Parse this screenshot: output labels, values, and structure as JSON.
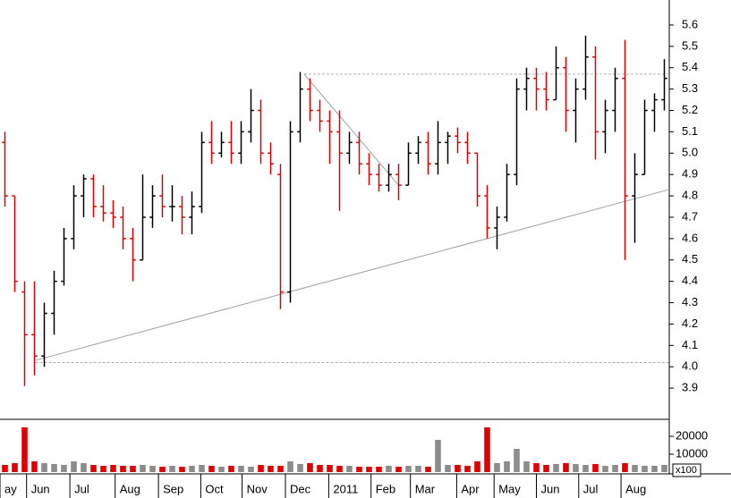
{
  "chart_data": {
    "type": "ohlc",
    "xlim": [
      0,
      68
    ],
    "xticks": [
      {
        "value": 0,
        "label": "ay"
      },
      {
        "value": 2.7,
        "label": "Jun"
      },
      {
        "value": 7.1,
        "label": "Jul"
      },
      {
        "value": 11.7,
        "label": "Aug"
      },
      {
        "value": 16.1,
        "label": "Sep"
      },
      {
        "value": 20.4,
        "label": "Oct"
      },
      {
        "value": 24.6,
        "label": "Nov"
      },
      {
        "value": 29.0,
        "label": "Dec"
      },
      {
        "value": 33.4,
        "label": "2011"
      },
      {
        "value": 37.7,
        "label": "Feb"
      },
      {
        "value": 41.7,
        "label": "Mar"
      },
      {
        "value": 46.4,
        "label": "Apr"
      },
      {
        "value": 50.2,
        "label": "May"
      },
      {
        "value": 54.5,
        "label": "Jun"
      },
      {
        "value": 58.8,
        "label": "Jul"
      },
      {
        "value": 63.1,
        "label": "Aug"
      }
    ],
    "ylim": [
      3.754,
      5.717
    ],
    "yticks": [
      {
        "value": 3.9,
        "label": "3.9"
      },
      {
        "value": 4.0,
        "label": "4.0"
      },
      {
        "value": 4.1,
        "label": "4.1"
      },
      {
        "value": 4.2,
        "label": "4.2"
      },
      {
        "value": 4.3,
        "label": "4.3"
      },
      {
        "value": 4.4,
        "label": "4.4"
      },
      {
        "value": 4.5,
        "label": "4.5"
      },
      {
        "value": 4.6,
        "label": "4.6"
      },
      {
        "value": 4.7,
        "label": "4.7"
      },
      {
        "value": 4.8,
        "label": "4.8"
      },
      {
        "value": 4.9,
        "label": "4.9"
      },
      {
        "value": 5.0,
        "label": "5.0"
      },
      {
        "value": 5.1,
        "label": "5.1"
      },
      {
        "value": 5.2,
        "label": "5.2"
      },
      {
        "value": 5.3,
        "label": "5.3"
      },
      {
        "value": 5.4,
        "label": "5.4"
      },
      {
        "value": 5.5,
        "label": "5.5"
      },
      {
        "value": 5.6,
        "label": "5.6"
      }
    ],
    "up_color": "#000000",
    "down_color": "#e00000",
    "volume_up_color": "#8c8c8c",
    "open": [
      5.05,
      4.8,
      4.35,
      4.15,
      4.05,
      4.25,
      4.4,
      4.6,
      4.8,
      4.88,
      4.75,
      4.72,
      4.7,
      4.6,
      4.5,
      4.7,
      4.8,
      4.75,
      4.75,
      4.7,
      4.75,
      5.05,
      5.0,
      5.05,
      5.0,
      5.1,
      5.2,
      5.0,
      4.9,
      4.35,
      5.1,
      5.3,
      5.2,
      5.15,
      5.1,
      5.0,
      5.05,
      4.95,
      4.9,
      4.85,
      4.9,
      4.85,
      5.0,
      5.05,
      4.95,
      5.05,
      5.08,
      5.05,
      5.0,
      4.8,
      4.65,
      4.7,
      4.9,
      5.3,
      5.35,
      5.3,
      5.25,
      5.4,
      5.2,
      5.3,
      5.45,
      5.1,
      5.2,
      5.35,
      4.8,
      4.9,
      5.2,
      5.25
    ],
    "high": [
      5.1,
      4.8,
      4.4,
      4.4,
      4.3,
      4.45,
      4.65,
      4.85,
      4.9,
      4.9,
      4.85,
      4.78,
      4.75,
      4.65,
      4.9,
      4.85,
      4.9,
      4.85,
      4.8,
      4.82,
      5.1,
      5.15,
      5.1,
      5.15,
      5.15,
      5.3,
      5.25,
      5.05,
      4.95,
      5.15,
      5.38,
      5.35,
      5.25,
      5.2,
      5.2,
      5.1,
      5.1,
      5.0,
      4.95,
      4.95,
      4.95,
      5.05,
      5.08,
      5.1,
      5.15,
      5.1,
      5.12,
      5.1,
      5.0,
      4.85,
      4.75,
      4.95,
      5.35,
      5.4,
      5.4,
      5.38,
      5.5,
      5.45,
      5.35,
      5.55,
      5.5,
      5.25,
      5.4,
      5.53,
      5.0,
      5.25,
      5.28,
      5.44
    ],
    "low": [
      4.75,
      4.35,
      3.91,
      3.96,
      4.0,
      4.15,
      4.38,
      4.55,
      4.7,
      4.7,
      4.68,
      4.65,
      4.55,
      4.4,
      4.5,
      4.65,
      4.7,
      4.68,
      4.62,
      4.62,
      4.72,
      4.95,
      4.98,
      4.95,
      4.95,
      5.05,
      4.95,
      4.9,
      4.27,
      4.3,
      5.05,
      5.15,
      5.1,
      4.95,
      4.73,
      4.95,
      4.9,
      4.85,
      4.82,
      4.82,
      4.78,
      4.85,
      4.95,
      4.9,
      4.9,
      4.95,
      5.0,
      4.95,
      4.75,
      4.6,
      4.55,
      4.68,
      4.85,
      5.2,
      5.2,
      5.2,
      5.25,
      5.1,
      5.05,
      5.25,
      4.97,
      5.0,
      5.1,
      4.5,
      4.58,
      4.9,
      5.1,
      5.2
    ],
    "close": [
      4.8,
      4.4,
      4.15,
      4.05,
      4.25,
      4.4,
      4.6,
      4.8,
      4.88,
      4.75,
      4.72,
      4.7,
      4.6,
      4.5,
      4.7,
      4.8,
      4.75,
      4.75,
      4.7,
      4.75,
      5.05,
      5.0,
      5.05,
      5.0,
      5.1,
      5.2,
      5.0,
      4.95,
      4.35,
      5.1,
      5.3,
      5.2,
      5.15,
      5.1,
      5.0,
      5.05,
      4.95,
      4.9,
      4.85,
      4.9,
      4.85,
      5.0,
      5.05,
      4.95,
      5.05,
      5.08,
      5.05,
      5.0,
      4.8,
      4.65,
      4.7,
      4.9,
      5.3,
      5.35,
      5.3,
      5.25,
      5.4,
      5.2,
      5.3,
      5.45,
      5.1,
      5.2,
      5.35,
      4.8,
      4.9,
      5.2,
      5.25,
      5.35
    ],
    "volume": [
      4000,
      5000,
      25000,
      6000,
      5000,
      4500,
      4000,
      6000,
      5000,
      4000,
      3500,
      4000,
      3500,
      3500,
      4000,
      3500,
      3000,
      3500,
      3000,
      3500,
      4000,
      3500,
      3000,
      3500,
      3500,
      3000,
      4000,
      3500,
      3500,
      6000,
      4500,
      5000,
      4000,
      4000,
      3500,
      3500,
      3000,
      3000,
      3000,
      3500,
      3000,
      3500,
      3500,
      3000,
      18000,
      4000,
      4000,
      3500,
      6000,
      25000,
      5000,
      6000,
      13000,
      6000,
      5000,
      4000,
      4500,
      5000,
      4500,
      4000,
      4500,
      3500,
      4000,
      5000,
      4000,
      3500,
      3500,
      4000
    ],
    "volume_ylim": [
      0,
      29500
    ],
    "volume_yticks": [
      10000,
      20000
    ],
    "volume_unit": "x100",
    "lines": [
      {
        "x": [
          3.6,
          68
        ],
        "y": [
          4.03,
          4.83
        ],
        "style": "solid"
      },
      {
        "x": [
          30.9,
          40.5
        ],
        "y": [
          5.37,
          4.85
        ],
        "style": "solid"
      },
      {
        "x": [
          30.9,
          68
        ],
        "y": [
          5.37,
          5.37
        ],
        "style": "dashed"
      },
      {
        "x": [
          3.6,
          68
        ],
        "y": [
          4.02,
          4.02
        ],
        "style": "dashed"
      }
    ]
  }
}
